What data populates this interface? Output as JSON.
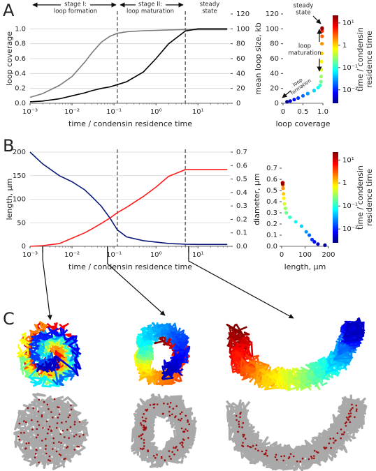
{
  "panel_labels": [
    "A",
    "B",
    "C"
  ],
  "chart_data": [
    {
      "type": "line",
      "xscale": "log",
      "x": [
        0.001,
        0.002,
        0.005,
        0.01,
        0.02,
        0.03,
        0.05,
        0.08,
        0.12,
        0.2,
        0.5,
        1,
        2,
        5,
        10,
        20,
        50
      ],
      "xlim": [
        0.001,
        60
      ],
      "xticks": [
        {
          "value": 0.001,
          "label": "10⁻³"
        },
        {
          "value": 0.01,
          "label": "10⁻²"
        },
        {
          "value": 0.1,
          "label": "10⁻¹"
        },
        {
          "value": 1,
          "label": "10⁰"
        },
        {
          "value": 10,
          "label": "10¹"
        }
      ],
      "ylim": [
        0,
        1.2
      ],
      "yticks": [
        {
          "value": 0,
          "label": "0.0"
        },
        0.2,
        0.4,
        0.6,
        0.8,
        {
          "value": 1,
          "label": "1.0"
        }
      ],
      "y2lim": [
        0,
        120
      ],
      "y2ticks": [
        0,
        20,
        40,
        60,
        80,
        100,
        120
      ],
      "xlabel": "time / condensin residence time",
      "ylabel": "loop coverage",
      "y2label": "mean loop size, kb",
      "grid": true,
      "vlines": [
        0.12,
        5
      ],
      "annotations": [
        [
          "stage I:",
          "loop formation"
        ],
        [
          "stage II:",
          "loop maturation"
        ],
        [
          "steady",
          "state"
        ]
      ],
      "series": [
        {
          "color": "#7a7a7a",
          "values": [
            0.08,
            0.13,
            0.24,
            0.36,
            0.55,
            0.68,
            0.82,
            0.9,
            0.94,
            0.96,
            0.975,
            0.98,
            0.985,
            0.99,
            0.99,
            0.99,
            0.99
          ]
        },
        {
          "color": "#000000",
          "axis": "y2",
          "values": [
            2,
            3,
            6,
            10,
            14,
            17,
            20,
            22,
            25,
            29,
            42,
            60,
            80,
            97,
            100,
            100,
            100
          ]
        }
      ]
    },
    {
      "type": "scatter",
      "x": [
        0.1,
        0.18,
        0.28,
        0.38,
        0.5,
        0.62,
        0.78,
        0.88,
        0.93,
        0.95,
        0.955,
        0.96,
        0.965,
        0.97,
        0.975,
        0.98,
        0.98,
        0.98,
        0.98,
        0.98
      ],
      "y": [
        2,
        3,
        5,
        7,
        10,
        13,
        17,
        21,
        24,
        29,
        36,
        45,
        56,
        67,
        80,
        90,
        97,
        100,
        100,
        101
      ],
      "c": [
        0.003,
        0.005,
        0.008,
        0.012,
        0.02,
        0.03,
        0.05,
        0.08,
        0.12,
        0.2,
        0.3,
        0.5,
        0.8,
        1.2,
        2,
        3,
        5,
        8,
        12,
        20
      ],
      "xlim": [
        0,
        1
      ],
      "xticks": [
        0,
        0.5,
        {
          "value": 1,
          "label": "1.0"
        }
      ],
      "ylim": [
        0,
        120
      ],
      "yticks": [
        0,
        20,
        40,
        60,
        80,
        100,
        120
      ],
      "xlabel": "loop coverage",
      "colorbar": {
        "label": [
          "time / condensin",
          "residence time"
        ],
        "colormap": "jet",
        "scale": "log",
        "lim": [
          0.0025,
          22
        ],
        "ticks": [
          {
            "value": 0.01,
            "label": "10⁻²"
          },
          {
            "value": 0.1,
            "label": "10⁻¹"
          },
          1,
          {
            "value": 10,
            "label": "10¹"
          }
        ]
      },
      "annotations": [
        [
          "steady",
          "state"
        ],
        [
          "loop",
          "maturation"
        ],
        [
          "loop",
          "formation"
        ]
      ]
    },
    {
      "type": "line",
      "xscale": "log",
      "x": [
        0.001,
        0.002,
        0.005,
        0.01,
        0.02,
        0.03,
        0.05,
        0.08,
        0.12,
        0.2,
        0.5,
        1,
        2,
        5,
        10,
        20,
        50
      ],
      "xlim": [
        0.001,
        60
      ],
      "xticks": [
        {
          "value": 0.001,
          "label": "10⁻³"
        },
        {
          "value": 0.01,
          "label": "10⁻²"
        },
        {
          "value": 0.1,
          "label": "10⁻¹"
        },
        {
          "value": 1,
          "label": "10⁰"
        },
        {
          "value": 10,
          "label": "10¹"
        }
      ],
      "ylim": [
        0,
        200
      ],
      "yticks": [
        0,
        50,
        100,
        150,
        200
      ],
      "y2lim": [
        0,
        0.7
      ],
      "y2ticks": [
        {
          "value": 0,
          "label": "0.0"
        },
        0.1,
        0.2,
        0.3,
        0.4,
        0.5,
        0.6,
        0.7
      ],
      "xlabel": "time / condensin residence time",
      "ylabel": "length, µm",
      "y2label": "diameter, µm",
      "grid": true,
      "vlines": [
        0.12,
        5
      ],
      "snapshots": [
        0.002,
        0.07,
        6
      ],
      "series": [
        {
          "color": "#0a1a7a",
          "values": [
            200,
            175,
            150,
            137,
            120,
            105,
            85,
            60,
            35,
            20,
            12,
            9,
            6,
            4.5,
            4,
            4,
            4
          ]
        },
        {
          "color": "#ff1a1a",
          "axis": "y2",
          "values": [
            0,
            0.005,
            0.02,
            0.06,
            0.1,
            0.13,
            0.17,
            0.21,
            0.25,
            0.29,
            0.37,
            0.44,
            0.52,
            0.57,
            0.57,
            0.57,
            0.57
          ]
        }
      ]
    },
    {
      "type": "scatter",
      "x": [
        185,
        155,
        140,
        130,
        118,
        105,
        85,
        60,
        35,
        20,
        16,
        12,
        9,
        8,
        6,
        5,
        5,
        4,
        4,
        4
      ],
      "y": [
        0.01,
        0.02,
        0.04,
        0.06,
        0.1,
        0.13,
        0.18,
        0.22,
        0.26,
        0.3,
        0.34,
        0.38,
        0.43,
        0.47,
        0.52,
        0.55,
        0.57,
        0.57,
        0.57,
        0.56
      ],
      "c": [
        0.003,
        0.005,
        0.008,
        0.012,
        0.02,
        0.03,
        0.05,
        0.08,
        0.12,
        0.2,
        0.3,
        0.5,
        0.8,
        1.2,
        2,
        3,
        5,
        8,
        12,
        20
      ],
      "xlim": [
        0,
        200
      ],
      "xticks": [
        0,
        100,
        200
      ],
      "ylim": [
        0,
        0.7
      ],
      "yticks": [
        {
          "value": 0,
          "label": "0.0"
        },
        0.1,
        0.2,
        0.3,
        0.4,
        0.5,
        0.6,
        0.7
      ],
      "xlabel": "length, µm",
      "colorbar": {
        "label": [
          "time / condensin",
          "residence time"
        ],
        "colormap": "jet",
        "scale": "log",
        "lim": [
          0.0025,
          22
        ],
        "ticks": [
          {
            "value": 0.01,
            "label": "10⁻²"
          },
          {
            "value": 0.1,
            "label": "10⁻¹"
          },
          1,
          {
            "value": 10,
            "label": "10¹"
          }
        ]
      }
    }
  ]
}
